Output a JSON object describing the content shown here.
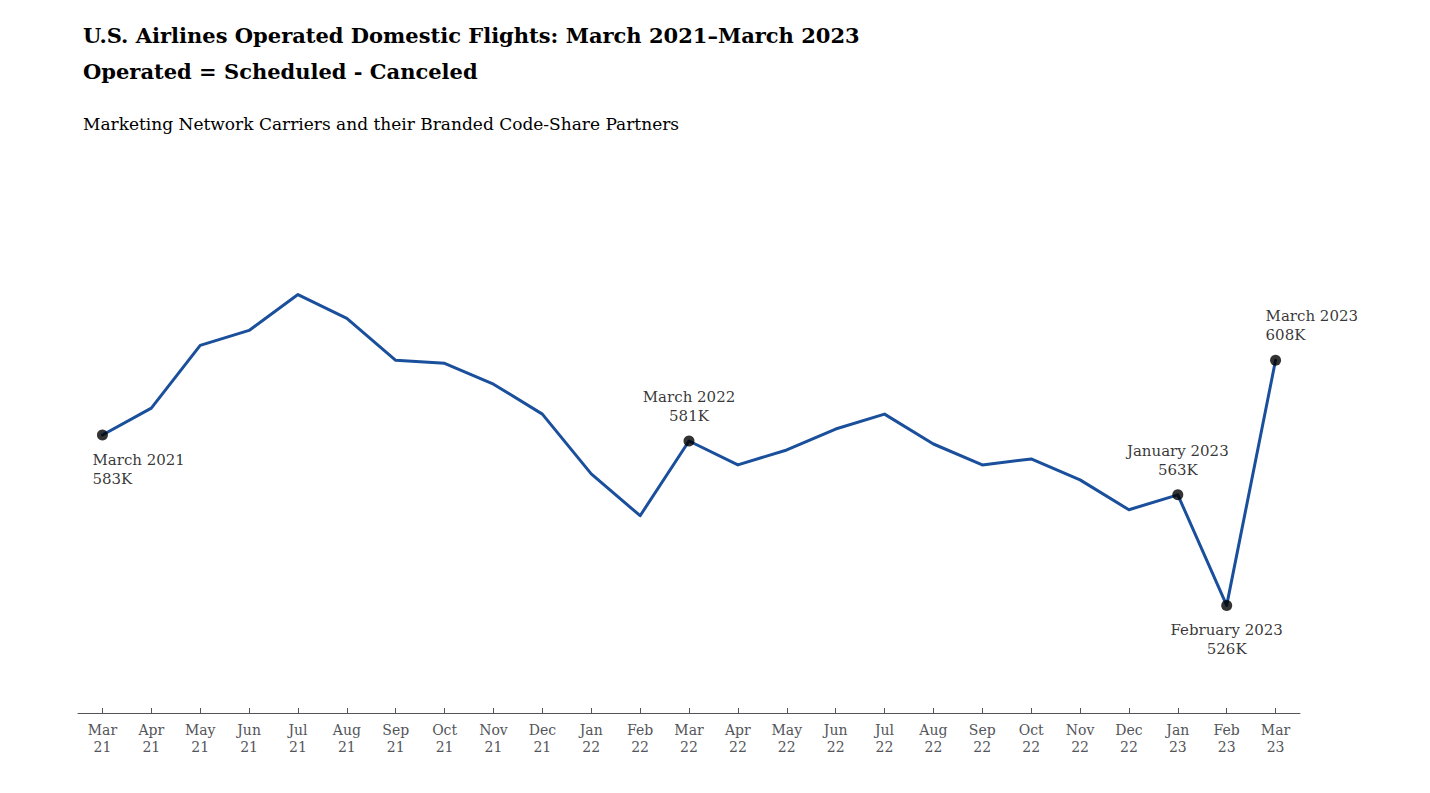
{
  "chart_data": {
    "type": "line",
    "title": "U.S. Airlines Operated Domestic Flights: March 2021–March 2023",
    "subtitle": "Operated = Scheduled - Canceled",
    "annotations_title": "Marketing Network Carriers and their Branded Code-Share Partners",
    "categories": [
      "Mar\n21",
      "Apr\n21",
      "May\n21",
      "Jun\n21",
      "Jul\n21",
      "Aug\n21",
      "Sep\n21",
      "Oct\n21",
      "Nov\n21",
      "Dec\n21",
      "Jan\n22",
      "Feb\n22",
      "Mar\n22",
      "Apr\n22",
      "May\n22",
      "Jun\n22",
      "Jul\n22",
      "Aug\n22",
      "Sep\n22",
      "Oct\n22",
      "Nov\n22",
      "Dec\n22",
      "Jan\n23",
      "Feb\n23",
      "Mar\n23"
    ],
    "values": [
      583,
      592,
      613,
      618,
      630,
      622,
      608,
      607,
      600,
      590,
      570,
      556,
      581,
      573,
      578,
      585,
      590,
      580,
      573,
      575,
      568,
      558,
      563,
      526,
      608
    ],
    "color": "#1a4f9c",
    "line_style": "solid",
    "ylim": [
      490,
      670
    ],
    "tick_labels": "x",
    "grid": false,
    "annotations": [
      {
        "category": "Mar\n21",
        "label": "March 2021\n583K",
        "color": "#000000",
        "marker": "circle"
      },
      {
        "category": "Mar\n22",
        "label": "March 2022\n581K",
        "color": "#000000",
        "marker": "circle"
      },
      {
        "category": "Jan\n23",
        "label": "January 2023\n563K",
        "color": "#000000",
        "marker": "circle"
      },
      {
        "category": "Feb\n23",
        "label": "February 2023\n526K",
        "color": "#000000",
        "marker": "circle"
      },
      {
        "category": "Mar\n23",
        "label": "March 2023\n608K",
        "color": "#000000",
        "marker": "circle"
      }
    ]
  }
}
